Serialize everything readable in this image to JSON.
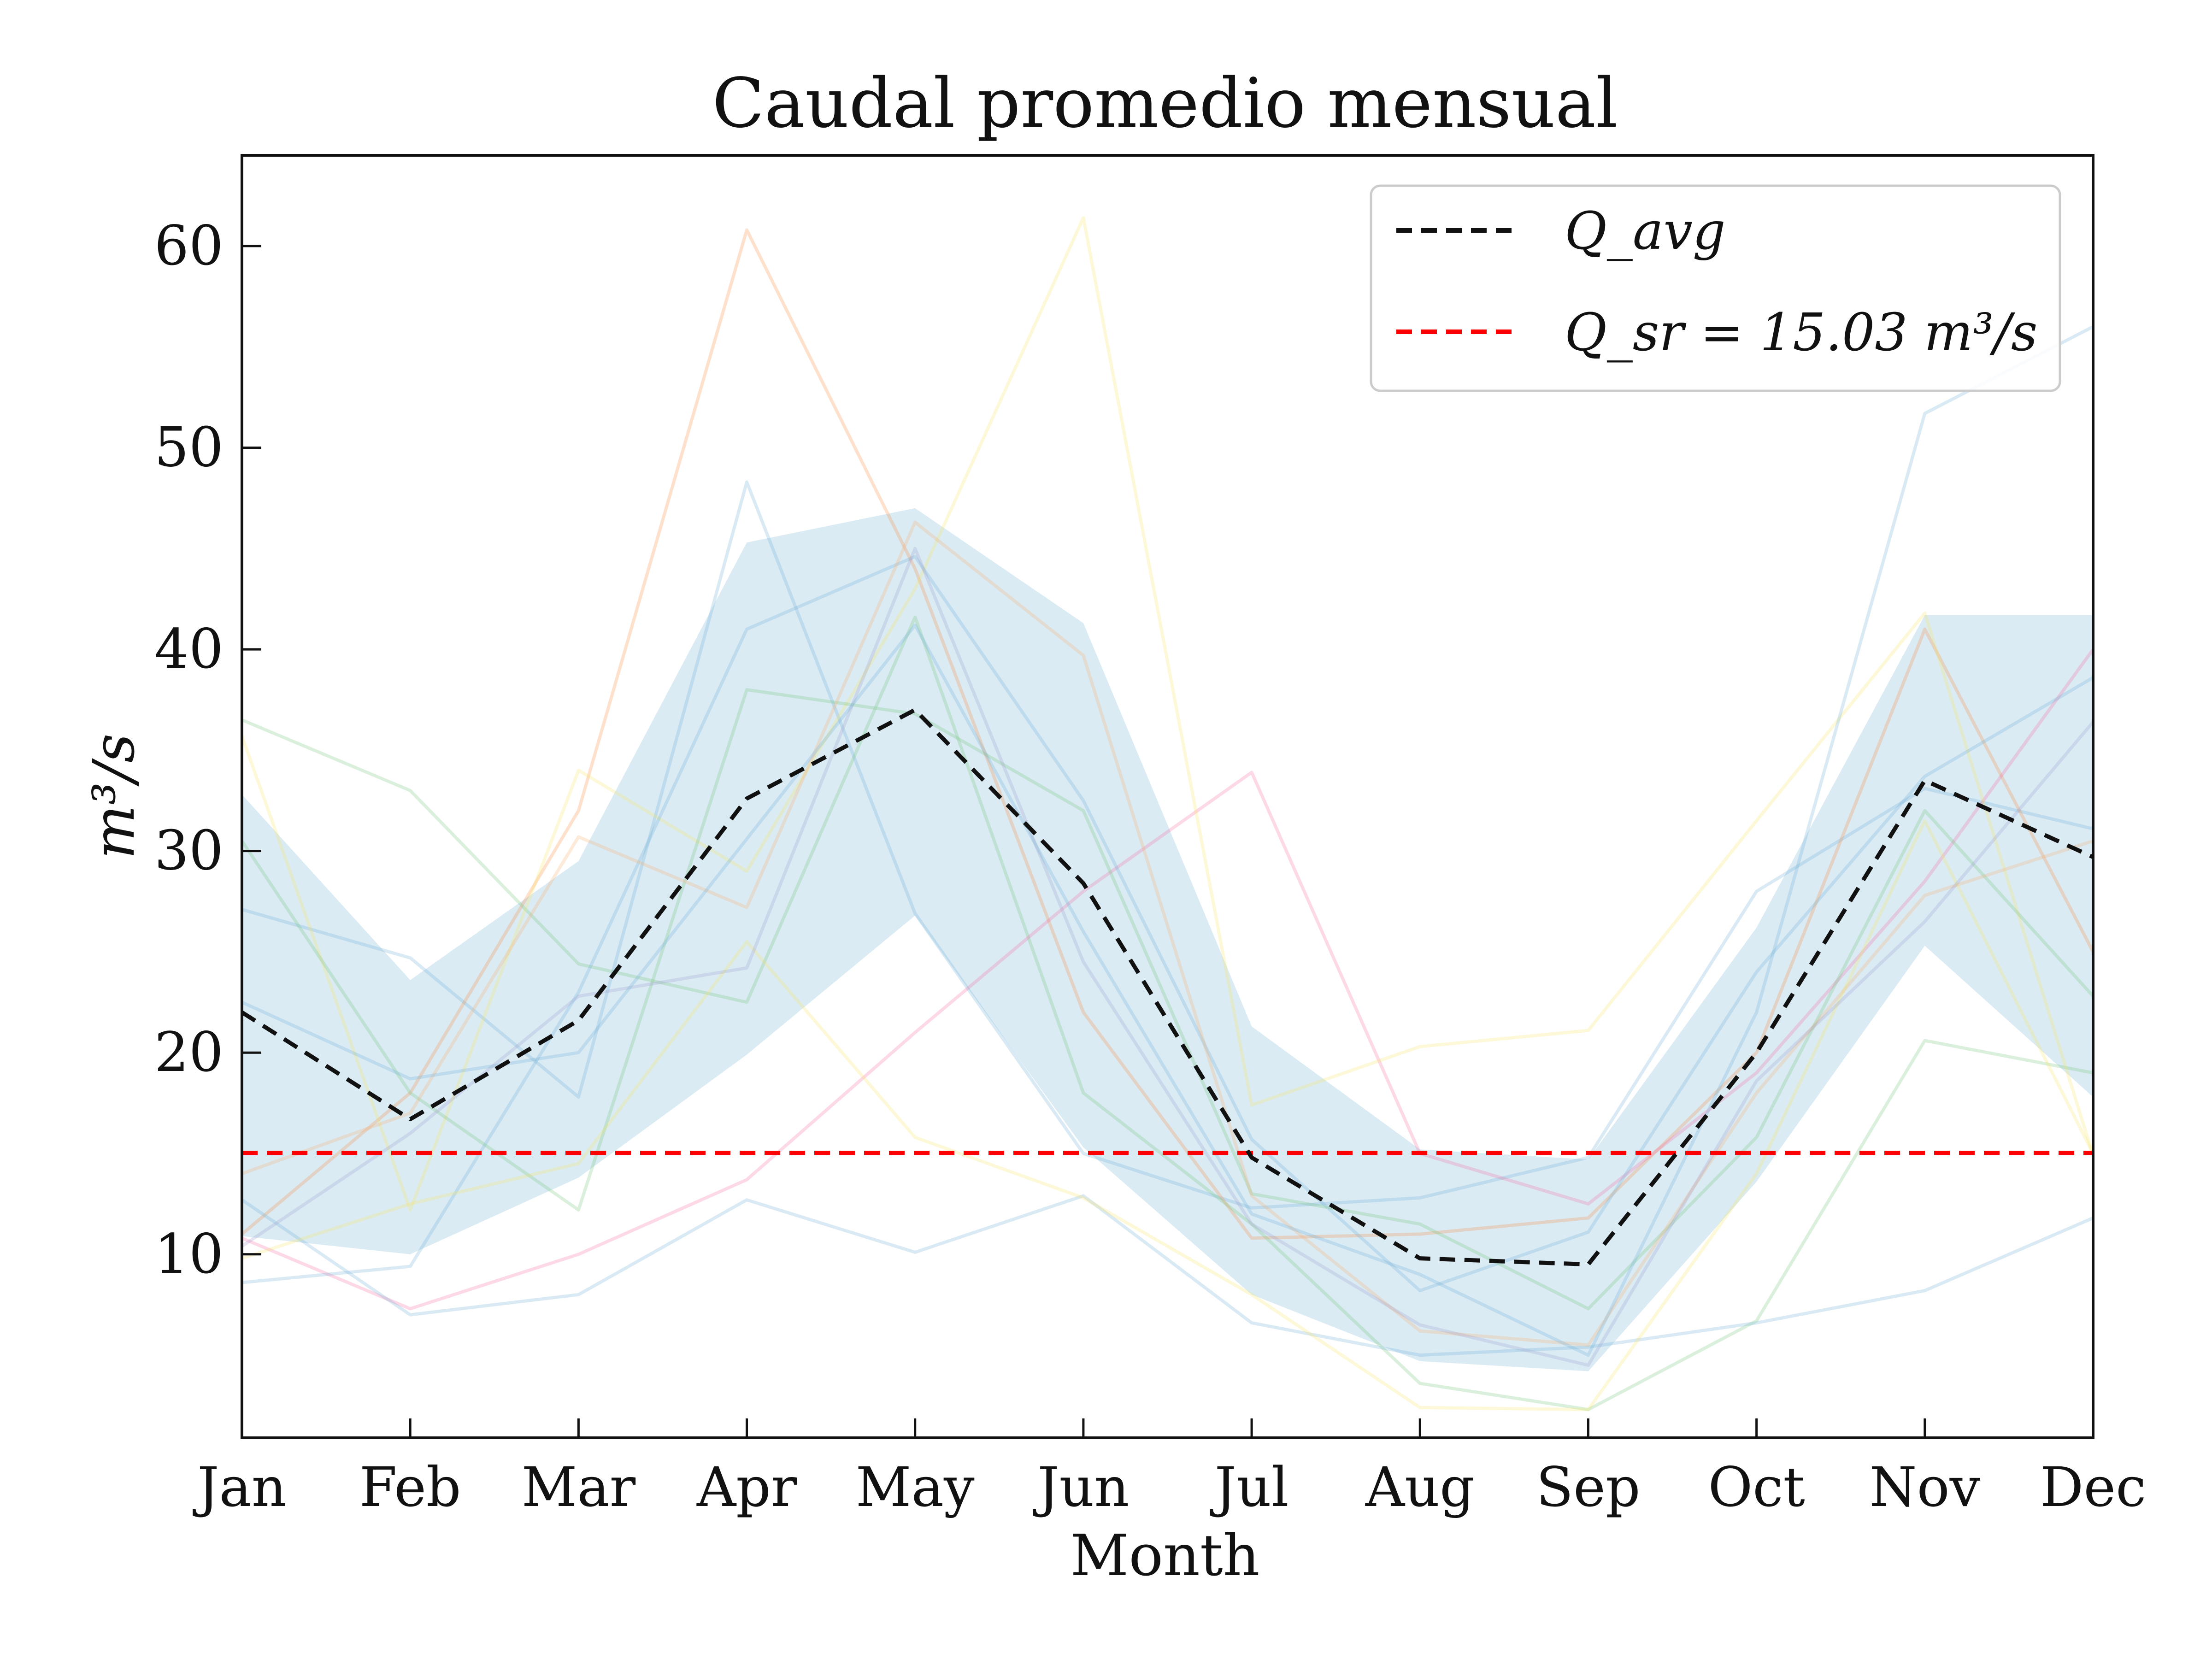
{
  "chart_data": {
    "type": "line",
    "title": "Caudal promedio mensual",
    "xlabel": "Month",
    "ylabel": "m³/s",
    "categories": [
      "Jan",
      "Feb",
      "Mar",
      "Apr",
      "May",
      "Jun",
      "Jul",
      "Aug",
      "Sep",
      "Oct",
      "Nov",
      "Dec"
    ],
    "ylim": [
      0.9,
      64.5
    ],
    "yticks": [
      10,
      20,
      30,
      40,
      50,
      60
    ],
    "grid": false,
    "legend": "top-right",
    "average": {
      "name": "Q_avg",
      "color": "#111111",
      "values": [
        22.0,
        16.7,
        21.6,
        32.6,
        37.0,
        28.4,
        14.8,
        9.8,
        9.5,
        20.0,
        33.5,
        29.7
      ]
    },
    "reference": {
      "name": "Q_sr = 15.03 m³/s",
      "value": 15.03,
      "color": "#ff0000"
    },
    "band": {
      "color": "#9ecae1",
      "upper": [
        32.8,
        23.6,
        29.5,
        45.3,
        47.0,
        41.3,
        21.3,
        15.2,
        14.7,
        26.2,
        41.7,
        41.7
      ],
      "lower": [
        10.9,
        10.0,
        13.8,
        19.9,
        26.8,
        15.3,
        8.0,
        4.7,
        4.2,
        13.6,
        25.3,
        17.8
      ]
    },
    "series": [
      {
        "color": "#6baed6",
        "values": [
          27.1,
          24.7,
          17.8,
          48.3,
          26.9,
          15.0,
          12.3,
          12.8,
          14.8,
          28.0,
          33.1,
          31.1
        ]
      },
      {
        "color": "#fd8d3c",
        "values": [
          11.0,
          18.0,
          32.0,
          60.8,
          44.0,
          22.0,
          10.8,
          11.0,
          11.8,
          20.0,
          41.0,
          25.0
        ]
      },
      {
        "color": "#74c476",
        "values": [
          36.5,
          33.0,
          24.4,
          22.5,
          41.6,
          18.0,
          11.5,
          3.6,
          2.3,
          6.7,
          20.6,
          19.0
        ]
      },
      {
        "color": "#f768a1",
        "values": [
          10.8,
          7.3,
          10.0,
          13.7,
          21.0,
          28.0,
          33.9,
          15.0,
          12.5,
          19.0,
          28.5,
          40.0
        ]
      },
      {
        "color": "#f7e463",
        "values": [
          35.7,
          12.2,
          34.0,
          29.0,
          43.0,
          61.4,
          17.4,
          20.3,
          21.1,
          31.5,
          41.8,
          14.9
        ]
      },
      {
        "color": "#6baed6",
        "values": [
          8.6,
          9.4,
          23.0,
          41.0,
          44.6,
          32.5,
          15.7,
          8.2,
          11.1,
          24.0,
          33.7,
          38.6
        ]
      },
      {
        "color": "#6baed6",
        "values": [
          12.7,
          7.0,
          8.0,
          12.7,
          10.1,
          12.9,
          6.6,
          5.0,
          5.4,
          6.6,
          8.2,
          11.8
        ]
      },
      {
        "color": "#74c476",
        "values": [
          30.5,
          18.0,
          12.2,
          38.0,
          36.8,
          32.0,
          13.0,
          11.5,
          7.3,
          15.8,
          32.0,
          22.8
        ]
      },
      {
        "color": "#fdae6b",
        "values": [
          14.0,
          17.0,
          30.7,
          27.2,
          46.3,
          39.7,
          12.9,
          6.2,
          5.5,
          18.0,
          27.8,
          30.5
        ]
      },
      {
        "color": "#f7e463",
        "values": [
          9.8,
          12.5,
          14.5,
          25.5,
          15.8,
          12.8,
          8.0,
          2.4,
          2.3,
          14.0,
          31.5,
          15.0
        ]
      },
      {
        "color": "#9e9ac8",
        "values": [
          10.4,
          16.0,
          22.8,
          24.2,
          45.0,
          24.5,
          11.5,
          6.5,
          4.5,
          18.6,
          26.5,
          36.4
        ]
      },
      {
        "color": "#6baed6",
        "values": [
          22.5,
          18.7,
          20.0,
          30.6,
          41.2,
          26.0,
          12.0,
          9.0,
          5.0,
          22.0,
          51.7,
          56.0
        ]
      }
    ]
  }
}
